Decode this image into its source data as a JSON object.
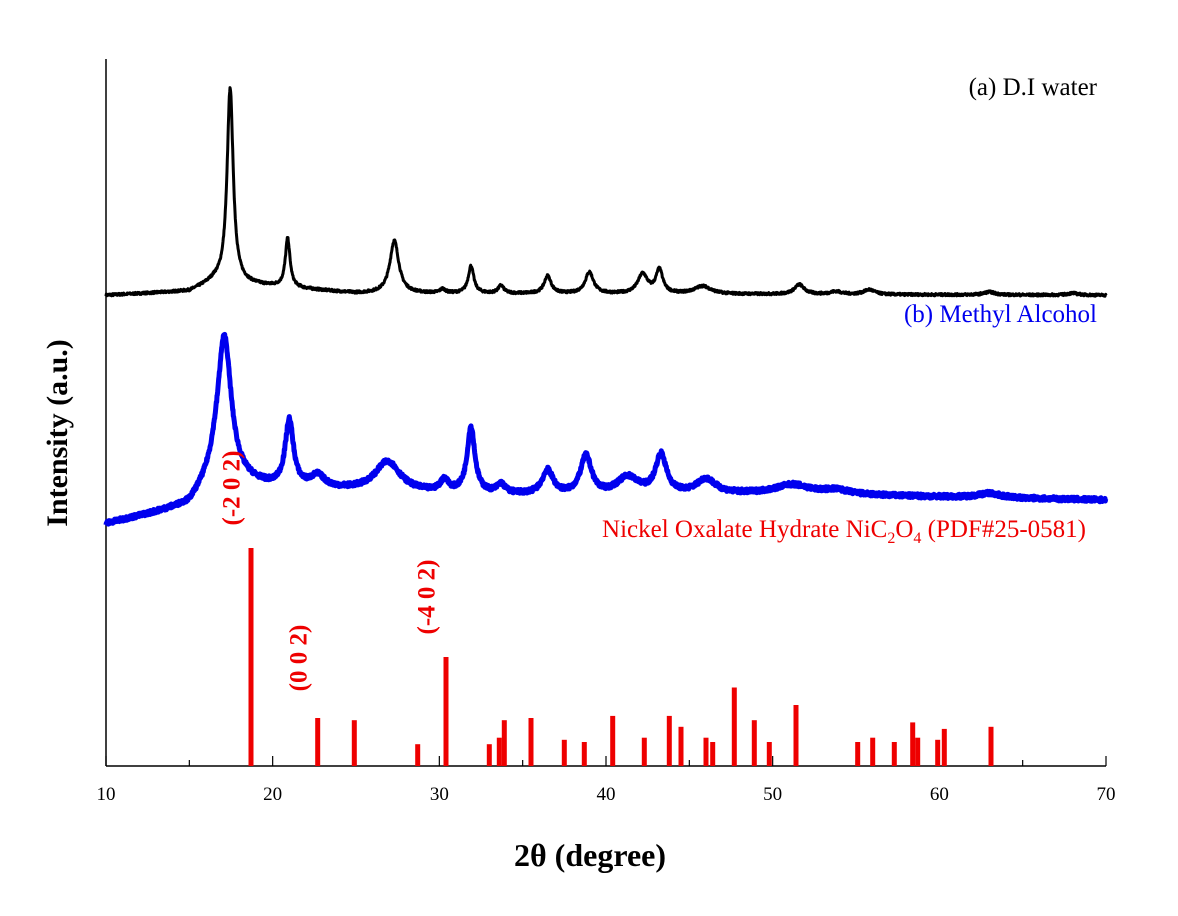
{
  "chart_data": {
    "type": "line",
    "title": "",
    "xlabel": "2θ (degree)",
    "ylabel": "Intensity (a.u.)",
    "xlim": [
      10,
      70
    ],
    "x_ticks": [
      10,
      20,
      30,
      40,
      50,
      60,
      70
    ],
    "colors": {
      "water": "#000000",
      "methanol": "#0000ee",
      "reference": "#ee0000"
    },
    "series": [
      {
        "name": "(a) D.I water",
        "color": "#000000",
        "baseline": [
          [
            10,
            0.05
          ],
          [
            15,
            0.07
          ],
          [
            16.5,
            0.12
          ],
          [
            25,
            0.06
          ],
          [
            70,
            0.05
          ]
        ],
        "peaks": [
          {
            "x": 17.45,
            "h": 1.0,
            "w": 0.22
          },
          {
            "x": 20.9,
            "h": 0.25,
            "w": 0.17
          },
          {
            "x": 27.3,
            "h": 0.27,
            "w": 0.32
          },
          {
            "x": 30.2,
            "h": 0.02,
            "w": 0.2
          },
          {
            "x": 31.9,
            "h": 0.14,
            "w": 0.2
          },
          {
            "x": 33.7,
            "h": 0.04,
            "w": 0.2
          },
          {
            "x": 36.5,
            "h": 0.09,
            "w": 0.25
          },
          {
            "x": 39.0,
            "h": 0.11,
            "w": 0.3
          },
          {
            "x": 42.2,
            "h": 0.1,
            "w": 0.35
          },
          {
            "x": 43.2,
            "h": 0.12,
            "w": 0.25
          },
          {
            "x": 45.8,
            "h": 0.04,
            "w": 0.6
          },
          {
            "x": 51.6,
            "h": 0.05,
            "w": 0.35
          },
          {
            "x": 53.8,
            "h": 0.015,
            "w": 0.4
          },
          {
            "x": 55.8,
            "h": 0.025,
            "w": 0.4
          },
          {
            "x": 63.0,
            "h": 0.015,
            "w": 0.4
          },
          {
            "x": 68.0,
            "h": 0.01,
            "w": 0.4
          }
        ]
      },
      {
        "name": "(b) Methyl Alcohol",
        "color": "#0000ee",
        "baseline": [
          [
            10,
            0.0
          ],
          [
            15,
            0.06
          ],
          [
            16.5,
            0.15
          ],
          [
            20,
            0.12
          ],
          [
            30,
            0.1
          ],
          [
            40,
            0.09
          ],
          [
            50,
            0.1
          ],
          [
            70,
            0.08
          ]
        ],
        "peaks": [
          {
            "x": 17.1,
            "h": 0.48,
            "w": 0.5
          },
          {
            "x": 21.0,
            "h": 0.22,
            "w": 0.3
          },
          {
            "x": 22.7,
            "h": 0.04,
            "w": 0.5
          },
          {
            "x": 26.9,
            "h": 0.1,
            "w": 0.9
          },
          {
            "x": 30.3,
            "h": 0.04,
            "w": 0.3
          },
          {
            "x": 31.9,
            "h": 0.22,
            "w": 0.28
          },
          {
            "x": 33.7,
            "h": 0.03,
            "w": 0.3
          },
          {
            "x": 36.5,
            "h": 0.08,
            "w": 0.4
          },
          {
            "x": 38.8,
            "h": 0.13,
            "w": 0.4
          },
          {
            "x": 41.3,
            "h": 0.06,
            "w": 0.8
          },
          {
            "x": 43.3,
            "h": 0.13,
            "w": 0.4
          },
          {
            "x": 46.0,
            "h": 0.05,
            "w": 0.7
          },
          {
            "x": 51.2,
            "h": 0.03,
            "w": 1.2
          },
          {
            "x": 53.8,
            "h": 0.015,
            "w": 1.0
          },
          {
            "x": 63.0,
            "h": 0.015,
            "w": 0.8
          }
        ]
      }
    ],
    "reference": {
      "name": "Nickel Oxalate Hydrate NiC",
      "sub1": "2",
      "mid": "O",
      "sub2": "4",
      "suffix": " (PDF#25-0581)",
      "color": "#ee0000",
      "lines": [
        {
          "x": 18.7,
          "h": 1.0
        },
        {
          "x": 22.7,
          "h": 0.22
        },
        {
          "x": 24.9,
          "h": 0.21
        },
        {
          "x": 28.7,
          "h": 0.1
        },
        {
          "x": 30.4,
          "h": 0.5
        },
        {
          "x": 33.0,
          "h": 0.1
        },
        {
          "x": 33.6,
          "h": 0.13
        },
        {
          "x": 33.9,
          "h": 0.21
        },
        {
          "x": 35.5,
          "h": 0.22
        },
        {
          "x": 37.5,
          "h": 0.12
        },
        {
          "x": 38.7,
          "h": 0.11
        },
        {
          "x": 40.4,
          "h": 0.23
        },
        {
          "x": 42.3,
          "h": 0.13
        },
        {
          "x": 43.8,
          "h": 0.23
        },
        {
          "x": 44.5,
          "h": 0.18
        },
        {
          "x": 46.0,
          "h": 0.13
        },
        {
          "x": 46.4,
          "h": 0.11
        },
        {
          "x": 47.7,
          "h": 0.36
        },
        {
          "x": 48.9,
          "h": 0.21
        },
        {
          "x": 49.8,
          "h": 0.11
        },
        {
          "x": 51.4,
          "h": 0.28
        },
        {
          "x": 55.1,
          "h": 0.11
        },
        {
          "x": 56.0,
          "h": 0.13
        },
        {
          "x": 57.3,
          "h": 0.11
        },
        {
          "x": 58.4,
          "h": 0.2
        },
        {
          "x": 58.7,
          "h": 0.13
        },
        {
          "x": 59.9,
          "h": 0.12
        },
        {
          "x": 60.3,
          "h": 0.17
        },
        {
          "x": 63.1,
          "h": 0.18
        }
      ],
      "hkl_labels": [
        {
          "text": "(-2 0 2)",
          "x": 18.7
        },
        {
          "text": "(0 0 2)",
          "x": 22.7
        },
        {
          "text": "(-4 0 2)",
          "x": 30.4
        }
      ]
    }
  }
}
